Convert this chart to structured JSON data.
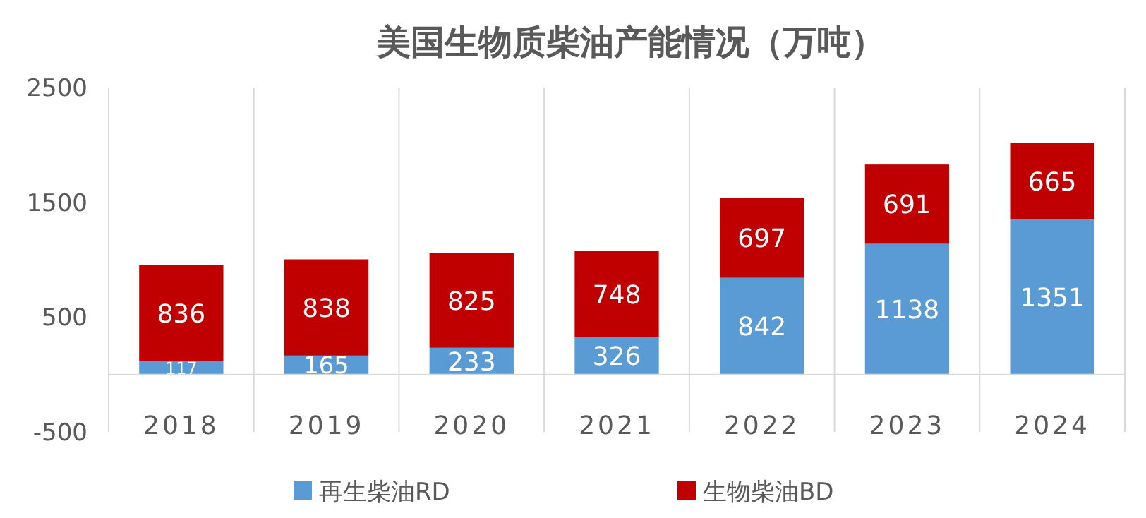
{
  "chart_data": {
    "type": "bar",
    "title": "美国生物质柴油产能情况（万吨）",
    "categories": [
      "2018",
      "2019",
      "2020",
      "2021",
      "2022",
      "2023",
      "2024"
    ],
    "stacked": true,
    "series": [
      {
        "name": "再生柴油RD",
        "color": "#5b9bd5",
        "values": [
          117,
          165,
          233,
          326,
          842,
          1138,
          1351
        ]
      },
      {
        "name": "生物柴油BD",
        "color": "#c00000",
        "values": [
          836,
          838,
          825,
          748,
          697,
          691,
          665
        ]
      }
    ],
    "ylim": [
      -500,
      2500
    ],
    "yticks": [
      -500,
      500,
      1500,
      2500
    ],
    "grid": "x",
    "legend": "bottom",
    "data_labels": true
  }
}
